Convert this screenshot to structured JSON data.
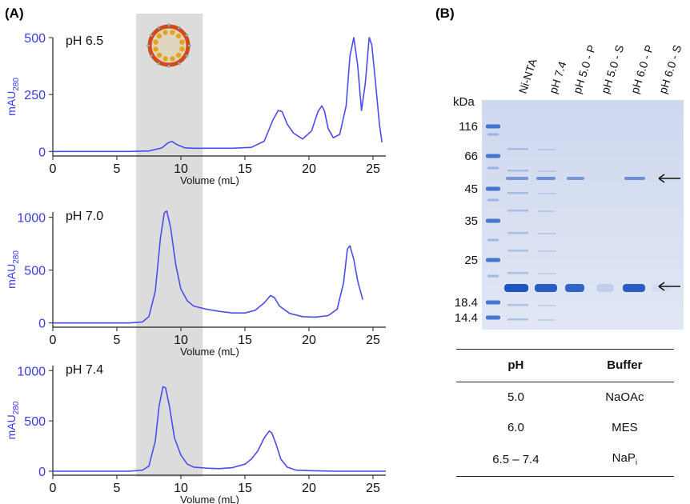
{
  "panel_a_label": "(A)",
  "panel_b_label": "(B)",
  "chart_data": [
    {
      "type": "line",
      "annotation": "pH 6.5",
      "xlabel": "Volume (mL)",
      "ylabel": "mAU",
      "ylabel_sub": "280",
      "xlim": [
        0,
        26
      ],
      "ylim": [
        -20,
        500
      ],
      "xticks": [
        0,
        5,
        10,
        15,
        20,
        25
      ],
      "yticks": [
        0,
        250,
        500
      ],
      "color": "#4b4bf0",
      "x": [
        0,
        6,
        7.5,
        8.5,
        9.0,
        9.3,
        9.7,
        10.3,
        11,
        14,
        15.5,
        16.5,
        17.2,
        17.6,
        17.9,
        18.3,
        18.8,
        19.5,
        20.2,
        20.7,
        21.0,
        21.2,
        21.5,
        21.9,
        22.4,
        22.9,
        23.2,
        23.5,
        23.8,
        24.1,
        24.4,
        24.7,
        24.9,
        25.2,
        25.5,
        25.7
      ],
      "y": [
        0,
        0,
        2,
        15,
        38,
        44,
        30,
        16,
        14,
        14,
        18,
        45,
        140,
        180,
        175,
        120,
        80,
        55,
        90,
        175,
        200,
        180,
        100,
        60,
        75,
        200,
        420,
        500,
        380,
        180,
        300,
        500,
        470,
        300,
        120,
        40
      ]
    },
    {
      "type": "line",
      "annotation": "pH 7.0",
      "xlabel": "Volume (mL)",
      "ylabel": "mAU",
      "ylabel_sub": "280",
      "xlim": [
        0,
        26
      ],
      "ylim": [
        -40,
        1050
      ],
      "xticks": [
        0,
        5,
        10,
        15,
        20,
        25
      ],
      "yticks": [
        0,
        500,
        1000
      ],
      "color": "#4b4bf0",
      "x": [
        0,
        6,
        7.0,
        7.5,
        8.0,
        8.4,
        8.7,
        8.9,
        9.2,
        9.6,
        10.0,
        10.5,
        11.0,
        12,
        13,
        14,
        15,
        15.8,
        16.5,
        17.0,
        17.3,
        17.7,
        18.5,
        19.5,
        20.5,
        21.5,
        22.2,
        22.7,
        23.0,
        23.2,
        23.5,
        23.8,
        24.2
      ],
      "y": [
        0,
        0,
        10,
        60,
        300,
        800,
        1040,
        1060,
        900,
        550,
        320,
        210,
        160,
        130,
        110,
        95,
        95,
        120,
        190,
        260,
        240,
        160,
        90,
        60,
        55,
        70,
        130,
        380,
        700,
        730,
        600,
        400,
        220
      ]
    },
    {
      "type": "line",
      "annotation": "pH 7.4",
      "xlabel": "Volume (mL)",
      "ylabel": "mAU",
      "ylabel_sub": "280",
      "xlim": [
        0,
        26
      ],
      "ylim": [
        -40,
        1050
      ],
      "xticks": [
        0,
        5,
        10,
        15,
        20,
        25
      ],
      "yticks": [
        0,
        500,
        1000
      ],
      "color": "#4b4bf0",
      "x": [
        0,
        6,
        7.0,
        7.5,
        8.0,
        8.3,
        8.6,
        8.8,
        9.1,
        9.5,
        10.0,
        10.5,
        11.0,
        12,
        13,
        14,
        15,
        15.5,
        16.0,
        16.5,
        16.9,
        17.1,
        17.4,
        17.8,
        18.3,
        19.0,
        20,
        22,
        26
      ],
      "y": [
        0,
        0,
        10,
        50,
        300,
        650,
        840,
        830,
        650,
        330,
        160,
        70,
        40,
        30,
        25,
        35,
        70,
        120,
        200,
        330,
        400,
        380,
        280,
        120,
        40,
        10,
        5,
        0,
        0
      ]
    }
  ],
  "shaded_region": {
    "x_start": 6.5,
    "x_end": 11.7
  },
  "gel": {
    "unit": "kDa",
    "markers": [
      "116",
      "66",
      "45",
      "35",
      "25",
      "18.4",
      "14.4"
    ],
    "lanes": [
      "Ni-NTA",
      "pH 7.4",
      "pH 5.0 - P",
      "pH 5.0 - S",
      "pH 6.0 - P",
      "pH 6.0 - S"
    ]
  },
  "table": {
    "headers": [
      "pH",
      "Buffer"
    ],
    "rows": [
      {
        "ph": "5.0",
        "buffer": "NaOAc"
      },
      {
        "ph": "6.0",
        "buffer": "MES"
      },
      {
        "ph": "6.5 – 7.4",
        "buffer": "NaP",
        "buffer_sub": "i"
      }
    ]
  },
  "colors": {
    "trace": "#4b4bf0",
    "axis_label": "#3a3aee",
    "shade": "#dcdcdc",
    "gel_bg": "#d6def0",
    "band": "#2a63c8"
  }
}
